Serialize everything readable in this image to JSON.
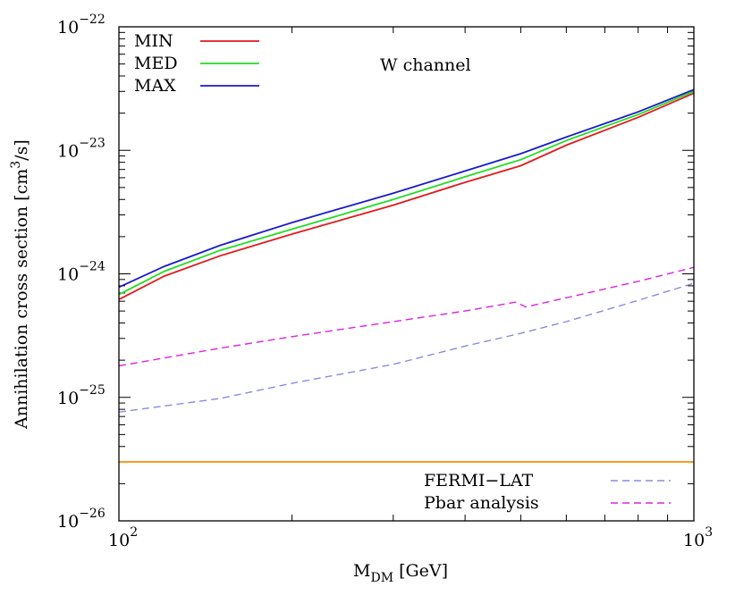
{
  "chart_data": {
    "type": "line",
    "annotation": "W channel",
    "xlabel": {
      "main": "M",
      "sub": "DM",
      "rest": " [GeV]"
    },
    "ylabel": {
      "pre": "Annihilation cross section [cm",
      "sup": "3",
      "post": "/s]"
    },
    "x_scale": "log",
    "y_scale": "log",
    "xlim": [
      100,
      1000
    ],
    "ylim": [
      1e-26,
      1e-22
    ],
    "x_ticks": [
      {
        "value": 100,
        "base": "10",
        "exp": "2"
      },
      {
        "value": 1000,
        "base": "10",
        "exp": "3"
      }
    ],
    "y_ticks": [
      {
        "value": 1e-26,
        "base": "10",
        "exp": "−26"
      },
      {
        "value": 1e-25,
        "base": "10",
        "exp": "−25"
      },
      {
        "value": 1e-24,
        "base": "10",
        "exp": "−24"
      },
      {
        "value": 1e-23,
        "base": "10",
        "exp": "−23"
      },
      {
        "value": 1e-22,
        "base": "10",
        "exp": "−22"
      }
    ],
    "legend_top_left": [
      "MIN",
      "MED",
      "MAX"
    ],
    "legend_bottom_right": [
      "FERMI−LAT",
      "Pbar analysis"
    ],
    "series": [
      {
        "name": "MIN",
        "color": "#e41a1c",
        "dash": "solid",
        "x": [
          100,
          120,
          150,
          200,
          300,
          400,
          500,
          600,
          800,
          1000
        ],
        "y": [
          6.2e-25,
          9.6e-25,
          1.4e-24,
          2.1e-24,
          3.6e-24,
          5.5e-24,
          7.5e-24,
          1.1e-23,
          1.85e-23,
          2.9e-23
        ]
      },
      {
        "name": "MED",
        "color": "#22dd22",
        "dash": "solid",
        "x": [
          100,
          120,
          150,
          200,
          300,
          400,
          500,
          600,
          800,
          1000
        ],
        "y": [
          6.8e-25,
          1.05e-24,
          1.55e-24,
          2.3e-24,
          4e-24,
          6.1e-24,
          8.4e-24,
          1.2e-23,
          1.95e-23,
          3e-23
        ]
      },
      {
        "name": "MAX",
        "color": "#1a1acc",
        "dash": "solid",
        "x": [
          100,
          120,
          150,
          200,
          300,
          400,
          500,
          600,
          800,
          1000
        ],
        "y": [
          7.8e-25,
          1.15e-24,
          1.7e-24,
          2.6e-24,
          4.5e-24,
          6.8e-24,
          9.4e-24,
          1.28e-23,
          2.05e-23,
          3.1e-23
        ]
      },
      {
        "name": "FERMI−LAT",
        "color": "#8a8ae6",
        "dash": "dashed",
        "x": [
          100,
          150,
          200,
          300,
          400,
          500,
          600,
          800,
          1000
        ],
        "y": [
          7.6e-26,
          9.8e-26,
          1.3e-25,
          1.85e-25,
          2.6e-25,
          3.3e-25,
          4.1e-25,
          6.1e-25,
          8.4e-25
        ]
      },
      {
        "name": "Pbar analysis",
        "color": "#e020e0",
        "dash": "dashed",
        "x": [
          100,
          150,
          200,
          300,
          400,
          490,
          510,
          600,
          800,
          1000
        ],
        "y": [
          1.8e-25,
          2.5e-25,
          3.1e-25,
          4.1e-25,
          5e-25,
          5.9e-25,
          5.4e-25,
          6.4e-25,
          8.7e-25,
          1.13e-24
        ]
      },
      {
        "name": "",
        "color": "#ff8c00",
        "dash": "solid",
        "x": [
          100,
          1000
        ],
        "y": [
          3e-26,
          3e-26
        ]
      }
    ]
  }
}
